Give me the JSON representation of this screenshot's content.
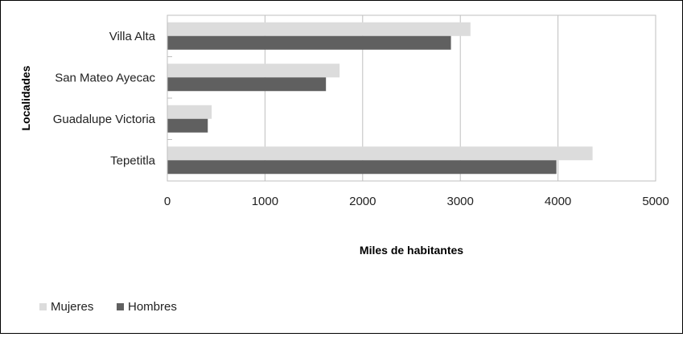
{
  "chart_data": {
    "type": "bar",
    "orientation": "horizontal",
    "categories": [
      "Villa Alta",
      "San Mateo Ayecac",
      "Guadalupe Victoria",
      "Tepetitla"
    ],
    "series": [
      {
        "name": "Mujeres",
        "color": "#dcdcdc",
        "values": [
          3100,
          1760,
          450,
          4350
        ]
      },
      {
        "name": "Hombres",
        "color": "#606060",
        "values": [
          2900,
          1620,
          410,
          3980
        ]
      }
    ],
    "xlim": [
      0,
      5000
    ],
    "xticks": [
      "0",
      "1000",
      "2000",
      "3000",
      "4000",
      "5000"
    ],
    "xlabel": "Miles de habitantes",
    "ylabel": "Localidades",
    "grid": "vertical",
    "legend_position": "bottom-left"
  }
}
